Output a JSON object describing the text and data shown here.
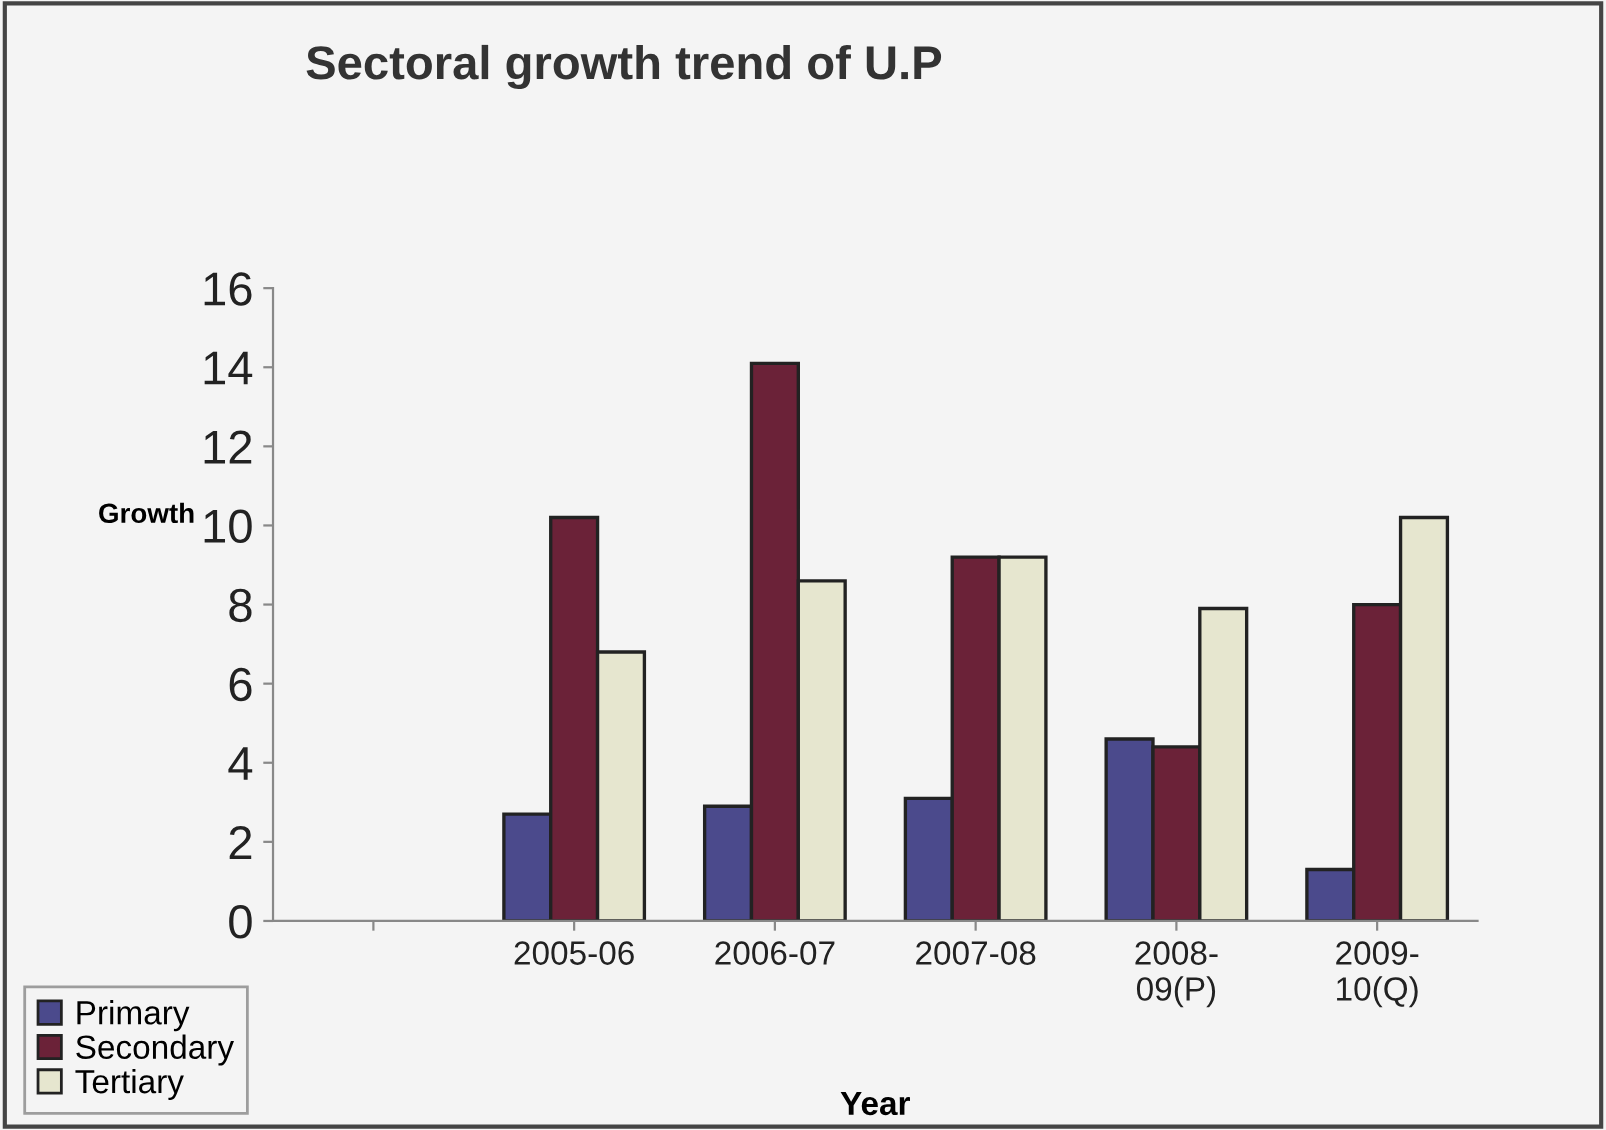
{
  "chart_data": {
    "type": "bar",
    "title": "Sectoral growth trend of U.P",
    "xlabel": "Year",
    "ylabel": "Growth",
    "categories": [
      null,
      "2005-06",
      "2006-07",
      "2007-08",
      "2008-\n09(P)",
      "2009-\n10(Q)"
    ],
    "series": [
      {
        "name": "Primary",
        "color": "#4b4a8c",
        "values": [
          null,
          2.7,
          2.9,
          3.1,
          4.6,
          1.3
        ]
      },
      {
        "name": "Secondary",
        "color": "#6b2238",
        "values": [
          null,
          10.2,
          14.1,
          9.2,
          4.4,
          8.0
        ]
      },
      {
        "name": "Tertiary",
        "color": "#e6e6cf",
        "values": [
          null,
          6.8,
          8.6,
          9.2,
          7.9,
          10.2
        ]
      }
    ],
    "ylim": [
      0,
      16
    ],
    "yticks": [
      0,
      2,
      4,
      6,
      8,
      10,
      12,
      14,
      16
    ],
    "grid": false,
    "legend": "bottom left"
  }
}
